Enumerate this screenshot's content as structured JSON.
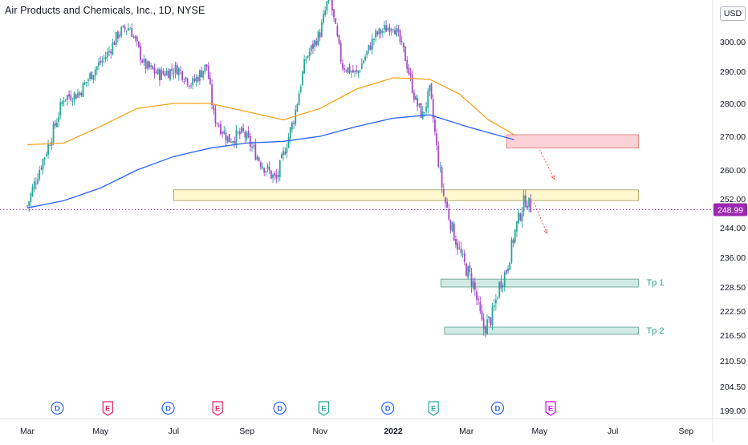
{
  "header": {
    "title": "Air Products and Chemicals, Inc., 1D, NYSE",
    "currency": "USD"
  },
  "colors": {
    "up": "#26a69a",
    "down": "#a64ac9",
    "ma_fast": "#f7a21b",
    "ma_slow": "#2962ff",
    "price_tag": "#9c27b0",
    "zone_resistance": "#f8c4cc",
    "zone_pivot": "#fff5c4",
    "zone_target": "#c7e4dc",
    "target_label": "#26a69a"
  },
  "chart_data": {
    "type": "candlestick",
    "symbol": "Air Products and Chemicals, Inc.",
    "interval": "1D",
    "exchange": "NYSE",
    "currency": "USD",
    "last_price": "248.99",
    "ylim": [
      196,
      313
    ],
    "y_ticks": [
      "300.00",
      "290.00",
      "280.00",
      "270.00",
      "260.00",
      "252.00",
      "244.00",
      "236.00",
      "228.50",
      "222.50",
      "216.50",
      "210.50",
      "204.50",
      "199.00"
    ],
    "y_tick_values": [
      300,
      290,
      280,
      270,
      260,
      252,
      244,
      236,
      228.5,
      222.5,
      216.5,
      210.5,
      204.5,
      199
    ],
    "x_ticks": [
      "Mar",
      "May",
      "Jul",
      "Sep",
      "Nov",
      "2022",
      "Mar",
      "May",
      "Jul",
      "Sep"
    ],
    "x_tick_months": [
      0,
      2,
      4,
      6,
      8,
      10,
      12,
      14,
      16,
      18
    ],
    "price_path": [
      {
        "m": 0.0,
        "p": 250
      },
      {
        "m": 0.25,
        "p": 258
      },
      {
        "m": 0.5,
        "p": 265
      },
      {
        "m": 0.75,
        "p": 273
      },
      {
        "m": 1.0,
        "p": 282
      },
      {
        "m": 1.4,
        "p": 283
      },
      {
        "m": 1.8,
        "p": 290
      },
      {
        "m": 2.2,
        "p": 296
      },
      {
        "m": 2.5,
        "p": 303
      },
      {
        "m": 2.8,
        "p": 305
      },
      {
        "m": 3.2,
        "p": 292
      },
      {
        "m": 3.6,
        "p": 289
      },
      {
        "m": 4.1,
        "p": 291
      },
      {
        "m": 4.5,
        "p": 286
      },
      {
        "m": 4.9,
        "p": 292
      },
      {
        "m": 5.1,
        "p": 276
      },
      {
        "m": 5.5,
        "p": 269
      },
      {
        "m": 5.9,
        "p": 271
      },
      {
        "m": 6.4,
        "p": 262
      },
      {
        "m": 6.8,
        "p": 257
      },
      {
        "m": 7.3,
        "p": 276
      },
      {
        "m": 7.6,
        "p": 294
      },
      {
        "m": 8.0,
        "p": 303
      },
      {
        "m": 8.25,
        "p": 316
      },
      {
        "m": 8.6,
        "p": 292
      },
      {
        "m": 9.0,
        "p": 289
      },
      {
        "m": 9.5,
        "p": 302
      },
      {
        "m": 10.0,
        "p": 306
      },
      {
        "m": 10.3,
        "p": 296
      },
      {
        "m": 10.6,
        "p": 281
      },
      {
        "m": 10.8,
        "p": 276
      },
      {
        "m": 11.0,
        "p": 284
      },
      {
        "m": 11.2,
        "p": 265
      },
      {
        "m": 11.35,
        "p": 254
      },
      {
        "m": 11.6,
        "p": 244
      },
      {
        "m": 11.9,
        "p": 235
      },
      {
        "m": 12.2,
        "p": 229
      },
      {
        "m": 12.45,
        "p": 218
      },
      {
        "m": 12.7,
        "p": 221
      },
      {
        "m": 12.9,
        "p": 229
      },
      {
        "m": 13.1,
        "p": 233
      },
      {
        "m": 13.35,
        "p": 244
      },
      {
        "m": 13.6,
        "p": 252
      },
      {
        "m": 13.8,
        "p": 249
      }
    ],
    "series": [
      {
        "name": "MA fast",
        "type": "line",
        "points": [
          {
            "m": 0.0,
            "p": 267.5
          },
          {
            "m": 1.0,
            "p": 268
          },
          {
            "m": 2.0,
            "p": 273
          },
          {
            "m": 3.0,
            "p": 278.5
          },
          {
            "m": 4.0,
            "p": 280
          },
          {
            "m": 5.0,
            "p": 280
          },
          {
            "m": 6.0,
            "p": 277.5
          },
          {
            "m": 7.0,
            "p": 275
          },
          {
            "m": 8.0,
            "p": 278.5
          },
          {
            "m": 9.0,
            "p": 284.5
          },
          {
            "m": 10.0,
            "p": 288
          },
          {
            "m": 11.0,
            "p": 287.5
          },
          {
            "m": 11.8,
            "p": 283
          },
          {
            "m": 12.6,
            "p": 275
          },
          {
            "m": 13.3,
            "p": 270.5
          }
        ]
      },
      {
        "name": "MA slow",
        "type": "line",
        "points": [
          {
            "m": 0.0,
            "p": 249.5
          },
          {
            "m": 1.0,
            "p": 251.5
          },
          {
            "m": 2.0,
            "p": 255
          },
          {
            "m": 3.0,
            "p": 260
          },
          {
            "m": 4.0,
            "p": 264
          },
          {
            "m": 5.0,
            "p": 266.5
          },
          {
            "m": 6.0,
            "p": 268
          },
          {
            "m": 7.0,
            "p": 268.5
          },
          {
            "m": 8.0,
            "p": 270
          },
          {
            "m": 9.0,
            "p": 273
          },
          {
            "m": 10.0,
            "p": 275.5
          },
          {
            "m": 11.0,
            "p": 276.5
          },
          {
            "m": 12.0,
            "p": 273
          },
          {
            "m": 13.3,
            "p": 269
          }
        ]
      }
    ],
    "zones": [
      {
        "kind": "resistance",
        "m_start": 13.1,
        "m_end": 16.7,
        "top": 270.5,
        "bottom": 266.5
      },
      {
        "kind": "pivot",
        "m_start": 4.0,
        "m_end": 16.7,
        "top": 254.5,
        "bottom": 251.5
      },
      {
        "kind": "target",
        "label": "Tp 1",
        "m_start": 11.3,
        "m_end": 16.7,
        "top": 230.5,
        "bottom": 228.5
      },
      {
        "kind": "target",
        "label": "Tp 2",
        "m_start": 11.4,
        "m_end": 16.7,
        "top": 218.5,
        "bottom": 217
      }
    ],
    "projections": [
      {
        "from": {
          "m": 14.0,
          "p": 266
        },
        "to": {
          "m": 14.4,
          "p": 257.5
        }
      },
      {
        "from": {
          "m": 13.85,
          "p": 251
        },
        "to": {
          "m": 14.2,
          "p": 242.5
        }
      }
    ],
    "events": [
      {
        "m": 0.82,
        "letter": "D",
        "type": "dividend"
      },
      {
        "m": 2.2,
        "letter": "E",
        "type": "earnings-past"
      },
      {
        "m": 3.85,
        "letter": "D",
        "type": "dividend"
      },
      {
        "m": 5.2,
        "letter": "E",
        "type": "earnings-past"
      },
      {
        "m": 6.9,
        "letter": "D",
        "type": "dividend"
      },
      {
        "m": 8.1,
        "letter": "E",
        "type": "earnings-green"
      },
      {
        "m": 9.85,
        "letter": "D",
        "type": "dividend"
      },
      {
        "m": 11.1,
        "letter": "E",
        "type": "earnings-green"
      },
      {
        "m": 12.85,
        "letter": "D",
        "type": "dividend"
      },
      {
        "m": 14.3,
        "letter": "E",
        "type": "earnings-future"
      }
    ]
  }
}
